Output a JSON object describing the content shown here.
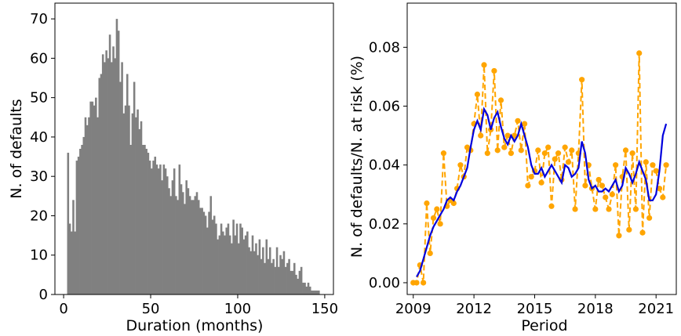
{
  "chart_data": [
    {
      "type": "bar",
      "title": "",
      "xlabel": "Duration (months)",
      "ylabel": "N. of defaults",
      "xlim": [
        -5,
        155
      ],
      "ylim": [
        0,
        74
      ],
      "xticks": [
        "0",
        "50",
        "100",
        "150"
      ],
      "yticks": [
        "0",
        "10",
        "20",
        "30",
        "40",
        "50",
        "60",
        "70"
      ],
      "color": "#808080",
      "bins_start": 1,
      "bin_width": 1,
      "values": [
        0,
        36,
        18,
        16,
        24,
        16,
        34,
        35,
        37,
        38,
        40,
        45,
        43,
        45,
        49,
        49,
        48,
        50,
        45,
        55,
        56,
        61,
        59,
        62,
        60,
        66,
        59,
        63,
        60,
        70,
        67,
        54,
        59,
        46,
        48,
        56,
        48,
        38,
        46,
        54,
        45,
        47,
        42,
        44,
        38,
        38,
        37,
        36,
        34,
        32,
        34,
        35,
        33,
        32,
        33,
        29,
        33,
        32,
        30,
        27,
        25,
        29,
        32,
        25,
        24,
        33,
        28,
        26,
        23,
        29,
        27,
        25,
        24,
        24,
        25,
        26,
        24,
        22,
        22,
        21,
        20,
        17,
        21,
        25,
        19,
        20,
        18,
        14,
        15,
        18,
        16,
        15,
        17,
        18,
        15,
        13,
        19,
        15,
        18,
        13,
        18,
        17,
        14,
        15,
        16,
        12,
        11,
        15,
        11,
        13,
        10,
        14,
        9,
        12,
        8,
        14,
        9,
        12,
        8,
        9,
        7,
        12,
        7,
        10,
        9,
        11,
        7,
        8,
        9,
        6,
        6,
        8,
        5,
        4,
        6,
        7,
        3,
        3,
        2,
        3,
        2,
        1,
        1,
        1,
        1,
        1
      ]
    },
    {
      "type": "line",
      "title": "",
      "xlabel": "Period",
      "ylabel": "N. of defaults/N. at risk (%)",
      "xlim": [
        2008.7,
        2022.0
      ],
      "ylim": [
        -0.004,
        0.095
      ],
      "xticks": [
        "2009",
        "2012",
        "2015",
        "2018",
        "2021"
      ],
      "yticks": [
        "0.00",
        "0.02",
        "0.04",
        "0.06",
        "0.08"
      ],
      "series": [
        {
          "color": "#ffa500",
          "style": "dashed-markers",
          "x": [
            2009.0,
            2009.167,
            2009.333,
            2009.5,
            2009.667,
            2009.833,
            2010.0,
            2010.167,
            2010.333,
            2010.5,
            2010.667,
            2010.833,
            2011.0,
            2011.167,
            2011.333,
            2011.5,
            2011.667,
            2011.833,
            2012.0,
            2012.167,
            2012.333,
            2012.5,
            2012.667,
            2012.833,
            2013.0,
            2013.167,
            2013.333,
            2013.5,
            2013.667,
            2013.833,
            2014.0,
            2014.167,
            2014.333,
            2014.5,
            2014.667,
            2014.833,
            2015.0,
            2015.167,
            2015.333,
            2015.5,
            2015.667,
            2015.833,
            2016.0,
            2016.167,
            2016.333,
            2016.5,
            2016.667,
            2016.833,
            2017.0,
            2017.167,
            2017.333,
            2017.5,
            2017.667,
            2017.833,
            2018.0,
            2018.167,
            2018.333,
            2018.5,
            2018.667,
            2018.833,
            2019.0,
            2019.167,
            2019.333,
            2019.5,
            2019.667,
            2019.833,
            2020.0,
            2020.167,
            2020.333,
            2020.5,
            2020.667,
            2020.833,
            2021.0,
            2021.167,
            2021.333,
            2021.5
          ],
          "y": [
            0.0,
            0.0,
            0.006,
            0.0,
            0.027,
            0.01,
            0.022,
            0.025,
            0.02,
            0.044,
            0.026,
            0.028,
            0.027,
            0.032,
            0.04,
            0.036,
            0.046,
            0.045,
            0.054,
            0.064,
            0.05,
            0.074,
            0.044,
            0.052,
            0.072,
            0.045,
            0.062,
            0.046,
            0.05,
            0.044,
            0.05,
            0.055,
            0.045,
            0.054,
            0.033,
            0.036,
            0.038,
            0.045,
            0.034,
            0.044,
            0.046,
            0.026,
            0.042,
            0.044,
            0.035,
            0.046,
            0.041,
            0.045,
            0.025,
            0.044,
            0.069,
            0.033,
            0.04,
            0.032,
            0.025,
            0.035,
            0.033,
            0.029,
            0.025,
            0.03,
            0.04,
            0.016,
            0.036,
            0.045,
            0.018,
            0.044,
            0.025,
            0.078,
            0.017,
            0.041,
            0.022,
            0.04,
            0.038,
            0.032,
            0.029,
            0.04
          ]
        },
        {
          "color": "#0000dd",
          "style": "solid",
          "x": [
            2009.167,
            2009.333,
            2009.5,
            2009.667,
            2009.833,
            2010.0,
            2010.167,
            2010.333,
            2010.5,
            2010.667,
            2010.833,
            2011.0,
            2011.167,
            2011.333,
            2011.5,
            2011.667,
            2011.833,
            2012.0,
            2012.167,
            2012.333,
            2012.5,
            2012.667,
            2012.833,
            2013.0,
            2013.167,
            2013.333,
            2013.5,
            2013.667,
            2013.833,
            2014.0,
            2014.167,
            2014.333,
            2014.5,
            2014.667,
            2014.833,
            2015.0,
            2015.167,
            2015.333,
            2015.5,
            2015.667,
            2015.833,
            2016.0,
            2016.167,
            2016.333,
            2016.5,
            2016.667,
            2016.833,
            2017.0,
            2017.167,
            2017.333,
            2017.5,
            2017.667,
            2017.833,
            2018.0,
            2018.167,
            2018.333,
            2018.5,
            2018.667,
            2018.833,
            2019.0,
            2019.167,
            2019.333,
            2019.5,
            2019.667,
            2019.833,
            2020.0,
            2020.167,
            2020.333,
            2020.5,
            2020.667,
            2020.833,
            2021.0,
            2021.167,
            2021.333,
            2021.5
          ],
          "y": [
            0.002,
            0.004,
            0.008,
            0.012,
            0.016,
            0.019,
            0.021,
            0.023,
            0.025,
            0.028,
            0.029,
            0.028,
            0.031,
            0.033,
            0.036,
            0.039,
            0.046,
            0.052,
            0.055,
            0.052,
            0.059,
            0.057,
            0.052,
            0.056,
            0.058,
            0.053,
            0.049,
            0.047,
            0.05,
            0.048,
            0.05,
            0.054,
            0.05,
            0.046,
            0.04,
            0.037,
            0.037,
            0.039,
            0.036,
            0.038,
            0.04,
            0.038,
            0.036,
            0.034,
            0.04,
            0.039,
            0.036,
            0.037,
            0.039,
            0.048,
            0.044,
            0.035,
            0.032,
            0.033,
            0.031,
            0.031,
            0.032,
            0.031,
            0.033,
            0.035,
            0.031,
            0.033,
            0.039,
            0.037,
            0.034,
            0.037,
            0.041,
            0.038,
            0.035,
            0.028,
            0.028,
            0.03,
            0.038,
            0.05,
            0.054
          ]
        }
      ]
    }
  ]
}
